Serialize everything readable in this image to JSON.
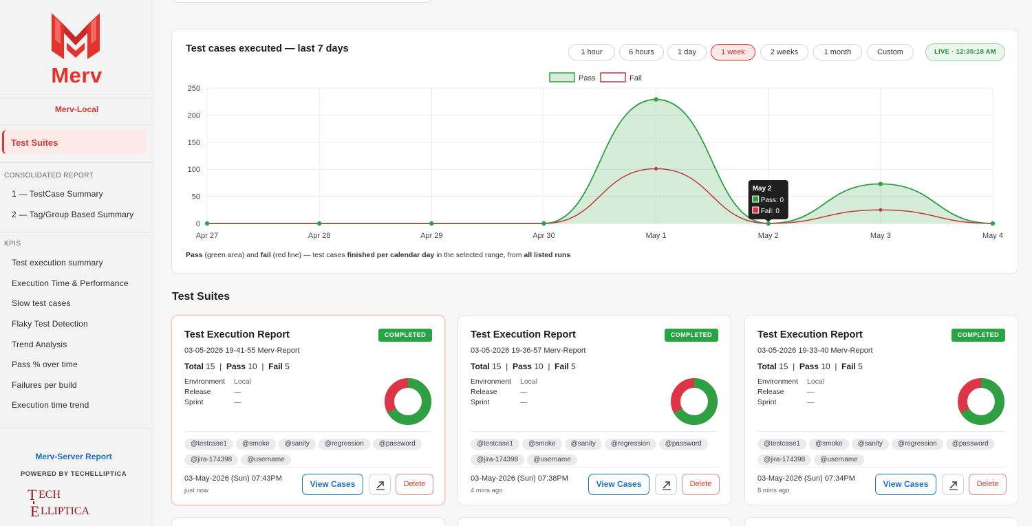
{
  "brand": {
    "name": "Merv",
    "env": "Merv-Local",
    "red": "#e5322d"
  },
  "sidebar": {
    "active": "Test Suites",
    "consolidated_title": "CONSOLIDATED REPORT",
    "consolidated_items": [
      "1 — TestCase Summary",
      "2 — Tag/Group Based Summary"
    ],
    "kpis_title": "KPIS",
    "kpi_items": [
      "Test execution summary",
      "Execution Time & Performance",
      "Slow test cases",
      "Flaky Test Detection",
      "Trend Analysis",
      "Pass % over time",
      "Failures per build",
      "Execution time trend"
    ],
    "server_link": "Merv-Server Report",
    "powered_by": "POWERED BY TECHELLIPTICA",
    "tech_logo_text": [
      "TECH",
      "ELLIPTICA"
    ]
  },
  "chart": {
    "ranges": [
      "1 hour",
      "6 hours",
      "1 day",
      "1 week",
      "2 weeks",
      "1 month",
      "Custom"
    ],
    "active_range": "1 week",
    "live": "LIVE · 12:35:18 AM",
    "caption": {
      "p1": "Pass",
      "p2": " (green area) and ",
      "p3": "fail",
      "p4": " (red line) — test cases ",
      "p5": "finished per calendar day",
      "p6": " in the selected range, from ",
      "p7": "all listed runs"
    },
    "tooltip": {
      "title": "May 2",
      "pass": "Pass: 0",
      "fail": "Fail: 0"
    }
  },
  "chart_data": {
    "type": "area",
    "title": "Test cases executed — last 7 days",
    "categories": [
      "Apr 27",
      "Apr 28",
      "Apr 29",
      "Apr 30",
      "May 1",
      "May 2",
      "May 3",
      "May 4"
    ],
    "series": [
      {
        "name": "Pass",
        "values": [
          0,
          0,
          0,
          0,
          229,
          0,
          73,
          0
        ],
        "color": "#2ea043"
      },
      {
        "name": "Fail",
        "values": [
          0,
          0,
          0,
          0,
          101,
          0,
          25,
          0
        ],
        "color": "#c0393b"
      }
    ],
    "ylim": [
      0,
      250
    ],
    "yticks": [
      0,
      50,
      100,
      150,
      200,
      250
    ],
    "grid": true,
    "legend": "top-center"
  },
  "suites_title": "Test Suites",
  "suites": [
    {
      "title": "Test Execution Report",
      "status": "COMPLETED",
      "name": "03-05-2026 19-41-55 Merv-Report",
      "total": "15",
      "pass": "10",
      "fail": "5",
      "env_label": "Environment",
      "env": "Local",
      "release_label": "Release",
      "release": "—",
      "sprint_label": "Sprint",
      "sprint": "—",
      "tags": [
        "@testcase1",
        "@smoke",
        "@sanity",
        "@regression",
        "@password",
        "@jira-174398",
        "@username"
      ],
      "date": "03-May-2026 (Sun) 07:43PM",
      "ago": "just now",
      "view": "View Cases",
      "delete": "Delete",
      "pass_ratio": 0.6667
    },
    {
      "title": "Test Execution Report",
      "status": "COMPLETED",
      "name": "03-05-2026 19-36-57 Merv-Report",
      "total": "15",
      "pass": "10",
      "fail": "5",
      "env_label": "Environment",
      "env": "Local",
      "release_label": "Release",
      "release": "—",
      "sprint_label": "Sprint",
      "sprint": "—",
      "tags": [
        "@testcase1",
        "@smoke",
        "@sanity",
        "@regression",
        "@password",
        "@jira-174398",
        "@username"
      ],
      "date": "03-May-2026 (Sun) 07:38PM",
      "ago": "4 mins ago",
      "view": "View Cases",
      "delete": "Delete",
      "pass_ratio": 0.6667
    },
    {
      "title": "Test Execution Report",
      "status": "COMPLETED",
      "name": "03-05-2026 19-33-40 Merv-Report",
      "total": "15",
      "pass": "10",
      "fail": "5",
      "env_label": "Environment",
      "env": "Local",
      "release_label": "Release",
      "release": "—",
      "sprint_label": "Sprint",
      "sprint": "—",
      "tags": [
        "@testcase1",
        "@smoke",
        "@sanity",
        "@regression",
        "@password",
        "@jira-174398",
        "@username"
      ],
      "date": "03-May-2026 (Sun) 07:34PM",
      "ago": "8 mins ago",
      "view": "View Cases",
      "delete": "Delete",
      "pass_ratio": 0.6667
    }
  ],
  "labels": {
    "total": "Total",
    "pass": "Pass",
    "fail": "Fail"
  }
}
